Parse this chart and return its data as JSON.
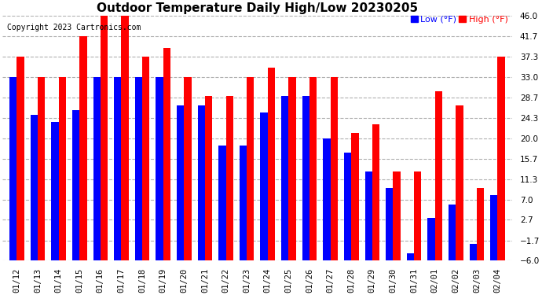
{
  "title": "Outdoor Temperature Daily High/Low 20230205",
  "copyright": "Copyright 2023 Cartronics.com",
  "legend_low": "Low (°F)",
  "legend_high": "High (°F)",
  "dates": [
    "01/12",
    "01/13",
    "01/14",
    "01/15",
    "01/16",
    "01/17",
    "01/18",
    "01/19",
    "01/20",
    "01/21",
    "01/22",
    "01/23",
    "01/24",
    "01/25",
    "01/26",
    "01/27",
    "01/28",
    "01/29",
    "01/30",
    "01/31",
    "02/01",
    "02/02",
    "02/03",
    "02/04"
  ],
  "highs": [
    37.3,
    33.0,
    33.0,
    41.7,
    46.0,
    46.0,
    37.3,
    39.2,
    33.0,
    29.0,
    29.0,
    33.0,
    35.1,
    33.0,
    33.0,
    33.0,
    21.2,
    23.0,
    13.0,
    13.0,
    30.0,
    27.0,
    9.5,
    37.3
  ],
  "lows": [
    33.0,
    25.0,
    23.5,
    26.0,
    33.0,
    33.0,
    33.0,
    33.0,
    27.0,
    27.0,
    18.5,
    18.5,
    25.5,
    29.0,
    29.0,
    20.0,
    17.0,
    13.0,
    9.5,
    -4.5,
    3.0,
    6.0,
    -2.5,
    8.0
  ],
  "ymin": -6.0,
  "ymax": 46.0,
  "yticks": [
    -6.0,
    -1.7,
    2.7,
    7.0,
    11.3,
    15.7,
    20.0,
    24.3,
    28.7,
    33.0,
    37.3,
    41.7,
    46.0
  ],
  "bar_width": 0.35,
  "high_color": "#ff0000",
  "low_color": "#0000ff",
  "bg_color": "#ffffff",
  "grid_color": "#b0b0b0",
  "title_fontsize": 11,
  "tick_fontsize": 7.5,
  "legend_fontsize": 8,
  "copyright_fontsize": 7
}
